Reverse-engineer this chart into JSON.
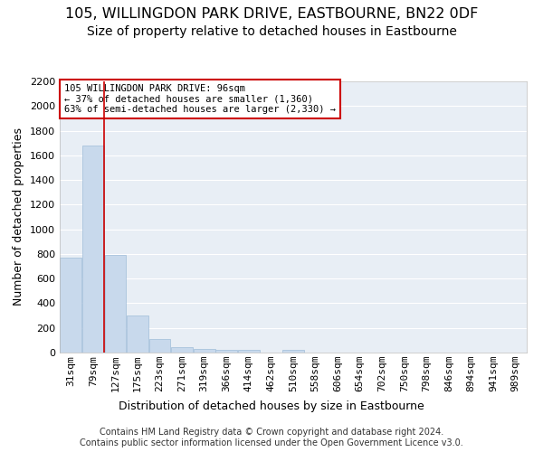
{
  "title": "105, WILLINGDON PARK DRIVE, EASTBOURNE, BN22 0DF",
  "subtitle": "Size of property relative to detached houses in Eastbourne",
  "xlabel": "Distribution of detached houses by size in Eastbourne",
  "ylabel": "Number of detached properties",
  "bar_color": "#c8d9ec",
  "bar_edge_color": "#a0bdd8",
  "background_color": "#e8eef5",
  "grid_color": "#ffffff",
  "vline_color": "#cc0000",
  "annotation_text": "105 WILLINGDON PARK DRIVE: 96sqm\n← 37% of detached houses are smaller (1,360)\n63% of semi-detached houses are larger (2,330) →",
  "annotation_box_color": "#cc0000",
  "categories": [
    "31sqm",
    "79sqm",
    "127sqm",
    "175sqm",
    "223sqm",
    "271sqm",
    "319sqm",
    "366sqm",
    "414sqm",
    "462sqm",
    "510sqm",
    "558sqm",
    "606sqm",
    "654sqm",
    "702sqm",
    "750sqm",
    "798sqm",
    "846sqm",
    "894sqm",
    "941sqm",
    "989sqm"
  ],
  "values": [
    770,
    1680,
    795,
    300,
    110,
    43,
    33,
    25,
    22,
    0,
    20,
    0,
    0,
    0,
    0,
    0,
    0,
    0,
    0,
    0,
    0
  ],
  "ylim": [
    0,
    2200
  ],
  "yticks": [
    0,
    200,
    400,
    600,
    800,
    1000,
    1200,
    1400,
    1600,
    1800,
    2000,
    2200
  ],
  "footnote": "Contains HM Land Registry data © Crown copyright and database right 2024.\nContains public sector information licensed under the Open Government Licence v3.0.",
  "title_fontsize": 11.5,
  "subtitle_fontsize": 10,
  "xlabel_fontsize": 9,
  "ylabel_fontsize": 9,
  "tick_fontsize": 8,
  "footnote_fontsize": 7,
  "vline_x_index": 1.5
}
